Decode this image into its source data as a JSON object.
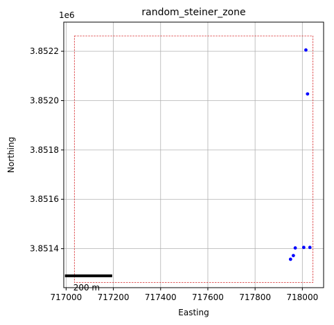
{
  "chart_data": {
    "type": "scatter",
    "title": "random_steiner_zone",
    "xlabel": "Easting",
    "ylabel": "Northing",
    "y_offset_label": "1e6",
    "xlim": [
      716990,
      718090
    ],
    "ylim": [
      3851242,
      3852318
    ],
    "x_ticks": [
      717000,
      717200,
      717400,
      717600,
      717800,
      718000
    ],
    "x_tick_labels": [
      "717000",
      "717200",
      "717400",
      "717600",
      "717800",
      "718000"
    ],
    "y_ticks": [
      3851400,
      3851600,
      3851800,
      3852000,
      3852200
    ],
    "y_tick_labels": [
      "3.8514",
      "3.8516",
      "3.8518",
      "3.8520",
      "3.8522"
    ],
    "grid": true,
    "zone_boundary": {
      "color": "#d62728",
      "style": "dashed",
      "x": [
        717035,
        718045
      ],
      "y": [
        3851263,
        3852262
      ]
    },
    "points": {
      "color": "#0000ff",
      "x": [
        718015,
        718022,
        717970,
        717962,
        717950,
        718006,
        718032
      ],
      "y": [
        3852205,
        3852027,
        3851403,
        3851372,
        3851357,
        3851405,
        3851405
      ]
    },
    "scale_bar": {
      "label": "200 m",
      "length": 200,
      "x_start": 716995,
      "y": 3851290,
      "color": "#000000"
    }
  }
}
